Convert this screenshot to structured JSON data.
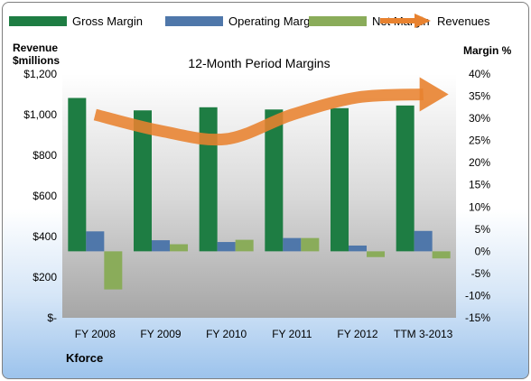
{
  "chart_data": {
    "type": "bar",
    "title": "12-Month Period Margins",
    "company": "Kforce",
    "ylabel_left": [
      "Revenue",
      "$millions"
    ],
    "ylabel_right": "Margin %",
    "categories": [
      "FY 2008",
      "FY 2009",
      "FY 2010",
      "FY 2011",
      "FY 2012",
      "TTM 3-2013"
    ],
    "left_ticks": [
      "$-",
      "$200",
      "$400",
      "$600",
      "$800",
      "$1,000",
      "$1,200"
    ],
    "left_axis": [
      0,
      1200
    ],
    "right_ticks": [
      "-15%",
      "-10%",
      "-5%",
      "0%",
      "5%",
      "10%",
      "15%",
      "20%",
      "25%",
      "30%",
      "35%",
      "40%"
    ],
    "right_axis": [
      -15,
      40
    ],
    "series": [
      {
        "name": "Gross Margin",
        "axis": "right",
        "type": "bar",
        "color": "#1e7d43",
        "values": [
          34.6,
          31.8,
          32.5,
          32.0,
          32.3,
          32.9
        ]
      },
      {
        "name": "Operating Margin",
        "axis": "right",
        "type": "bar",
        "color": "#4f77aa",
        "values": [
          4.5,
          2.5,
          2.1,
          3.0,
          1.3,
          4.6
        ]
      },
      {
        "name": "Net Margin",
        "axis": "right",
        "type": "bar",
        "color": "#8aac5a",
        "values": [
          -8.6,
          1.6,
          2.6,
          3.0,
          -1.3,
          -1.6
        ]
      },
      {
        "name": "Revenues",
        "axis": "left",
        "type": "line",
        "color": "#e8822f",
        "values": [
          1000,
          920,
          880,
          1000,
          1085,
          1100
        ]
      }
    ],
    "legend_position": "top",
    "grid": false
  }
}
